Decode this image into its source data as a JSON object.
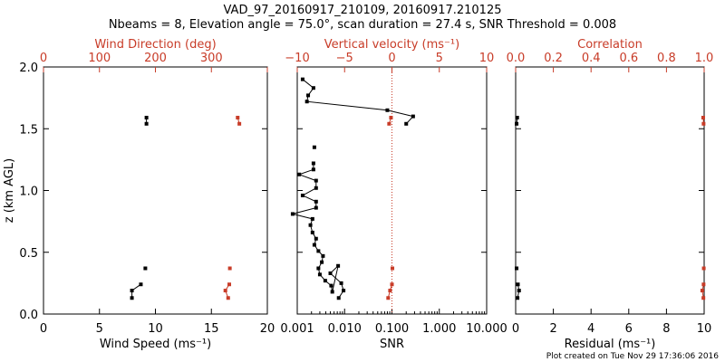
{
  "header": {
    "line1": "VAD_97_20160917_210109, 20160917.210125",
    "line2": "Nbeams = 8, Elevation angle = 75.0°, scan duration = 27.4 s, SNR Threshold = 0.008"
  },
  "footer": {
    "stamp": "Plot created on Tue Nov 29 17:36:06 2016"
  },
  "colors": {
    "axis": "#000000",
    "accent": "#c83c28",
    "threshold": "#c83c28"
  },
  "chart_data": [
    {
      "type": "line",
      "bottom_axis": {
        "label": "Wind Speed (ms⁻¹)",
        "range": [
          0,
          20
        ],
        "ticks": [
          0,
          5,
          10,
          15,
          20
        ],
        "tick_labels": [
          "0",
          "5",
          "10",
          "15",
          "20"
        ]
      },
      "top_axis": {
        "label": "Wind Direction (deg)",
        "range": [
          0,
          400
        ],
        "ticks": [
          0,
          100,
          200,
          300
        ],
        "tick_labels": [
          "0",
          "100",
          "200",
          "300"
        ]
      },
      "y_axis": {
        "label": "z (km AGL)",
        "range": [
          0,
          2
        ],
        "ticks": [
          0,
          0.5,
          1.0,
          1.5,
          2.0
        ],
        "tick_labels": [
          "0.0",
          "0.5",
          "1.0",
          "1.5",
          "2.0"
        ]
      },
      "series": [
        {
          "axis": "bottom",
          "color": "#000000",
          "segments": [
            [
              [
                9.2,
                1.59
              ],
              [
                9.2,
                1.54
              ]
            ],
            [
              [
                9.1,
                0.37
              ]
            ],
            [
              [
                8.7,
                0.24
              ],
              [
                7.9,
                0.19
              ],
              [
                7.9,
                0.13
              ]
            ]
          ]
        },
        {
          "axis": "top",
          "color": "#c83c28",
          "segments": [
            [
              [
                347,
                1.59
              ],
              [
                350,
                1.54
              ]
            ],
            [
              [
                333,
                0.37
              ]
            ],
            [
              [
                332,
                0.24
              ],
              [
                325,
                0.19
              ],
              [
                330,
                0.13
              ]
            ]
          ]
        }
      ]
    },
    {
      "type": "line",
      "bottom_axis": {
        "label": "SNR",
        "scale": "log",
        "range": [
          0.001,
          10
        ],
        "ticks": [
          0.001,
          0.01,
          0.1,
          1,
          10
        ],
        "tick_labels": [
          "0.001",
          "0.010",
          "0.100",
          "1.000",
          "10.000"
        ]
      },
      "top_axis": {
        "label": "Vertical velocity (ms⁻¹)",
        "range": [
          -10,
          10
        ],
        "ticks": [
          -10,
          -5,
          0,
          5,
          10
        ],
        "tick_labels": [
          "−10",
          "−5",
          "0",
          "5",
          "10"
        ]
      },
      "threshold_line": {
        "axis": "bottom",
        "value": 0.1,
        "style": "dotted"
      },
      "series": [
        {
          "axis": "bottom",
          "color": "#000000",
          "segments": [
            [
              [
                0.0013,
                1.9
              ],
              [
                0.0022,
                1.83
              ],
              [
                0.0017,
                1.77
              ],
              [
                0.0016,
                1.72
              ],
              [
                0.08,
                1.65
              ],
              [
                0.28,
                1.6
              ],
              [
                0.2,
                1.54
              ]
            ],
            [
              [
                0.0023,
                1.35
              ]
            ],
            [
              [
                0.0022,
                1.22
              ],
              [
                0.0022,
                1.17
              ],
              [
                0.0011,
                1.13
              ],
              [
                0.0025,
                1.08
              ],
              [
                0.0025,
                1.02
              ],
              [
                0.0013,
                0.96
              ],
              [
                0.0025,
                0.91
              ],
              [
                0.0025,
                0.86
              ],
              [
                0.0008,
                0.81
              ],
              [
                0.0021,
                0.77
              ],
              [
                0.0019,
                0.72
              ],
              [
                0.0021,
                0.66
              ],
              [
                0.0025,
                0.61
              ],
              [
                0.0023,
                0.56
              ],
              [
                0.0028,
                0.51
              ],
              [
                0.0035,
                0.47
              ],
              [
                0.0033,
                0.42
              ],
              [
                0.0028,
                0.37
              ],
              [
                0.003,
                0.32
              ],
              [
                0.0039,
                0.27
              ],
              [
                0.0052,
                0.23
              ],
              [
                0.0055,
                0.18
              ],
              [
                0.0073,
                0.39
              ],
              [
                0.005,
                0.33
              ],
              [
                0.0085,
                0.25
              ],
              [
                0.0095,
                0.19
              ],
              [
                0.0075,
                0.13
              ]
            ]
          ]
        },
        {
          "axis": "top",
          "color": "#c83c28",
          "segments": [
            [
              [
                -0.1,
                1.59
              ],
              [
                -0.3,
                1.54
              ]
            ],
            [
              [
                0.05,
                0.37
              ]
            ],
            [
              [
                0.0,
                0.24
              ],
              [
                -0.2,
                0.19
              ],
              [
                -0.4,
                0.13
              ]
            ]
          ]
        }
      ]
    },
    {
      "type": "scatter",
      "bottom_axis": {
        "label": "Residual (ms⁻¹)",
        "range": [
          0,
          10
        ],
        "ticks": [
          0,
          2,
          4,
          6,
          8,
          10
        ],
        "tick_labels": [
          "0",
          "2",
          "4",
          "6",
          "8",
          "10"
        ]
      },
      "top_axis": {
        "label": "Correlation",
        "range": [
          0,
          1
        ],
        "ticks": [
          0,
          0.2,
          0.4,
          0.6,
          0.8,
          1.0
        ],
        "tick_labels": [
          "0.0",
          "0.2",
          "0.4",
          "0.6",
          "0.8",
          "1.0"
        ]
      },
      "series": [
        {
          "axis": "bottom",
          "color": "#000000",
          "segments": [
            [
              [
                0.08,
                1.59
              ],
              [
                0.05,
                1.54
              ]
            ],
            [
              [
                0.05,
                0.37
              ]
            ],
            [
              [
                0.12,
                0.24
              ],
              [
                0.18,
                0.19
              ],
              [
                0.1,
                0.13
              ]
            ]
          ]
        },
        {
          "axis": "top",
          "color": "#c83c28",
          "segments": [
            [
              [
                0.995,
                1.59
              ],
              [
                0.997,
                1.54
              ]
            ],
            [
              [
                0.998,
                0.37
              ]
            ],
            [
              [
                0.997,
                0.24
              ],
              [
                0.99,
                0.19
              ],
              [
                0.996,
                0.13
              ]
            ]
          ]
        }
      ]
    }
  ]
}
